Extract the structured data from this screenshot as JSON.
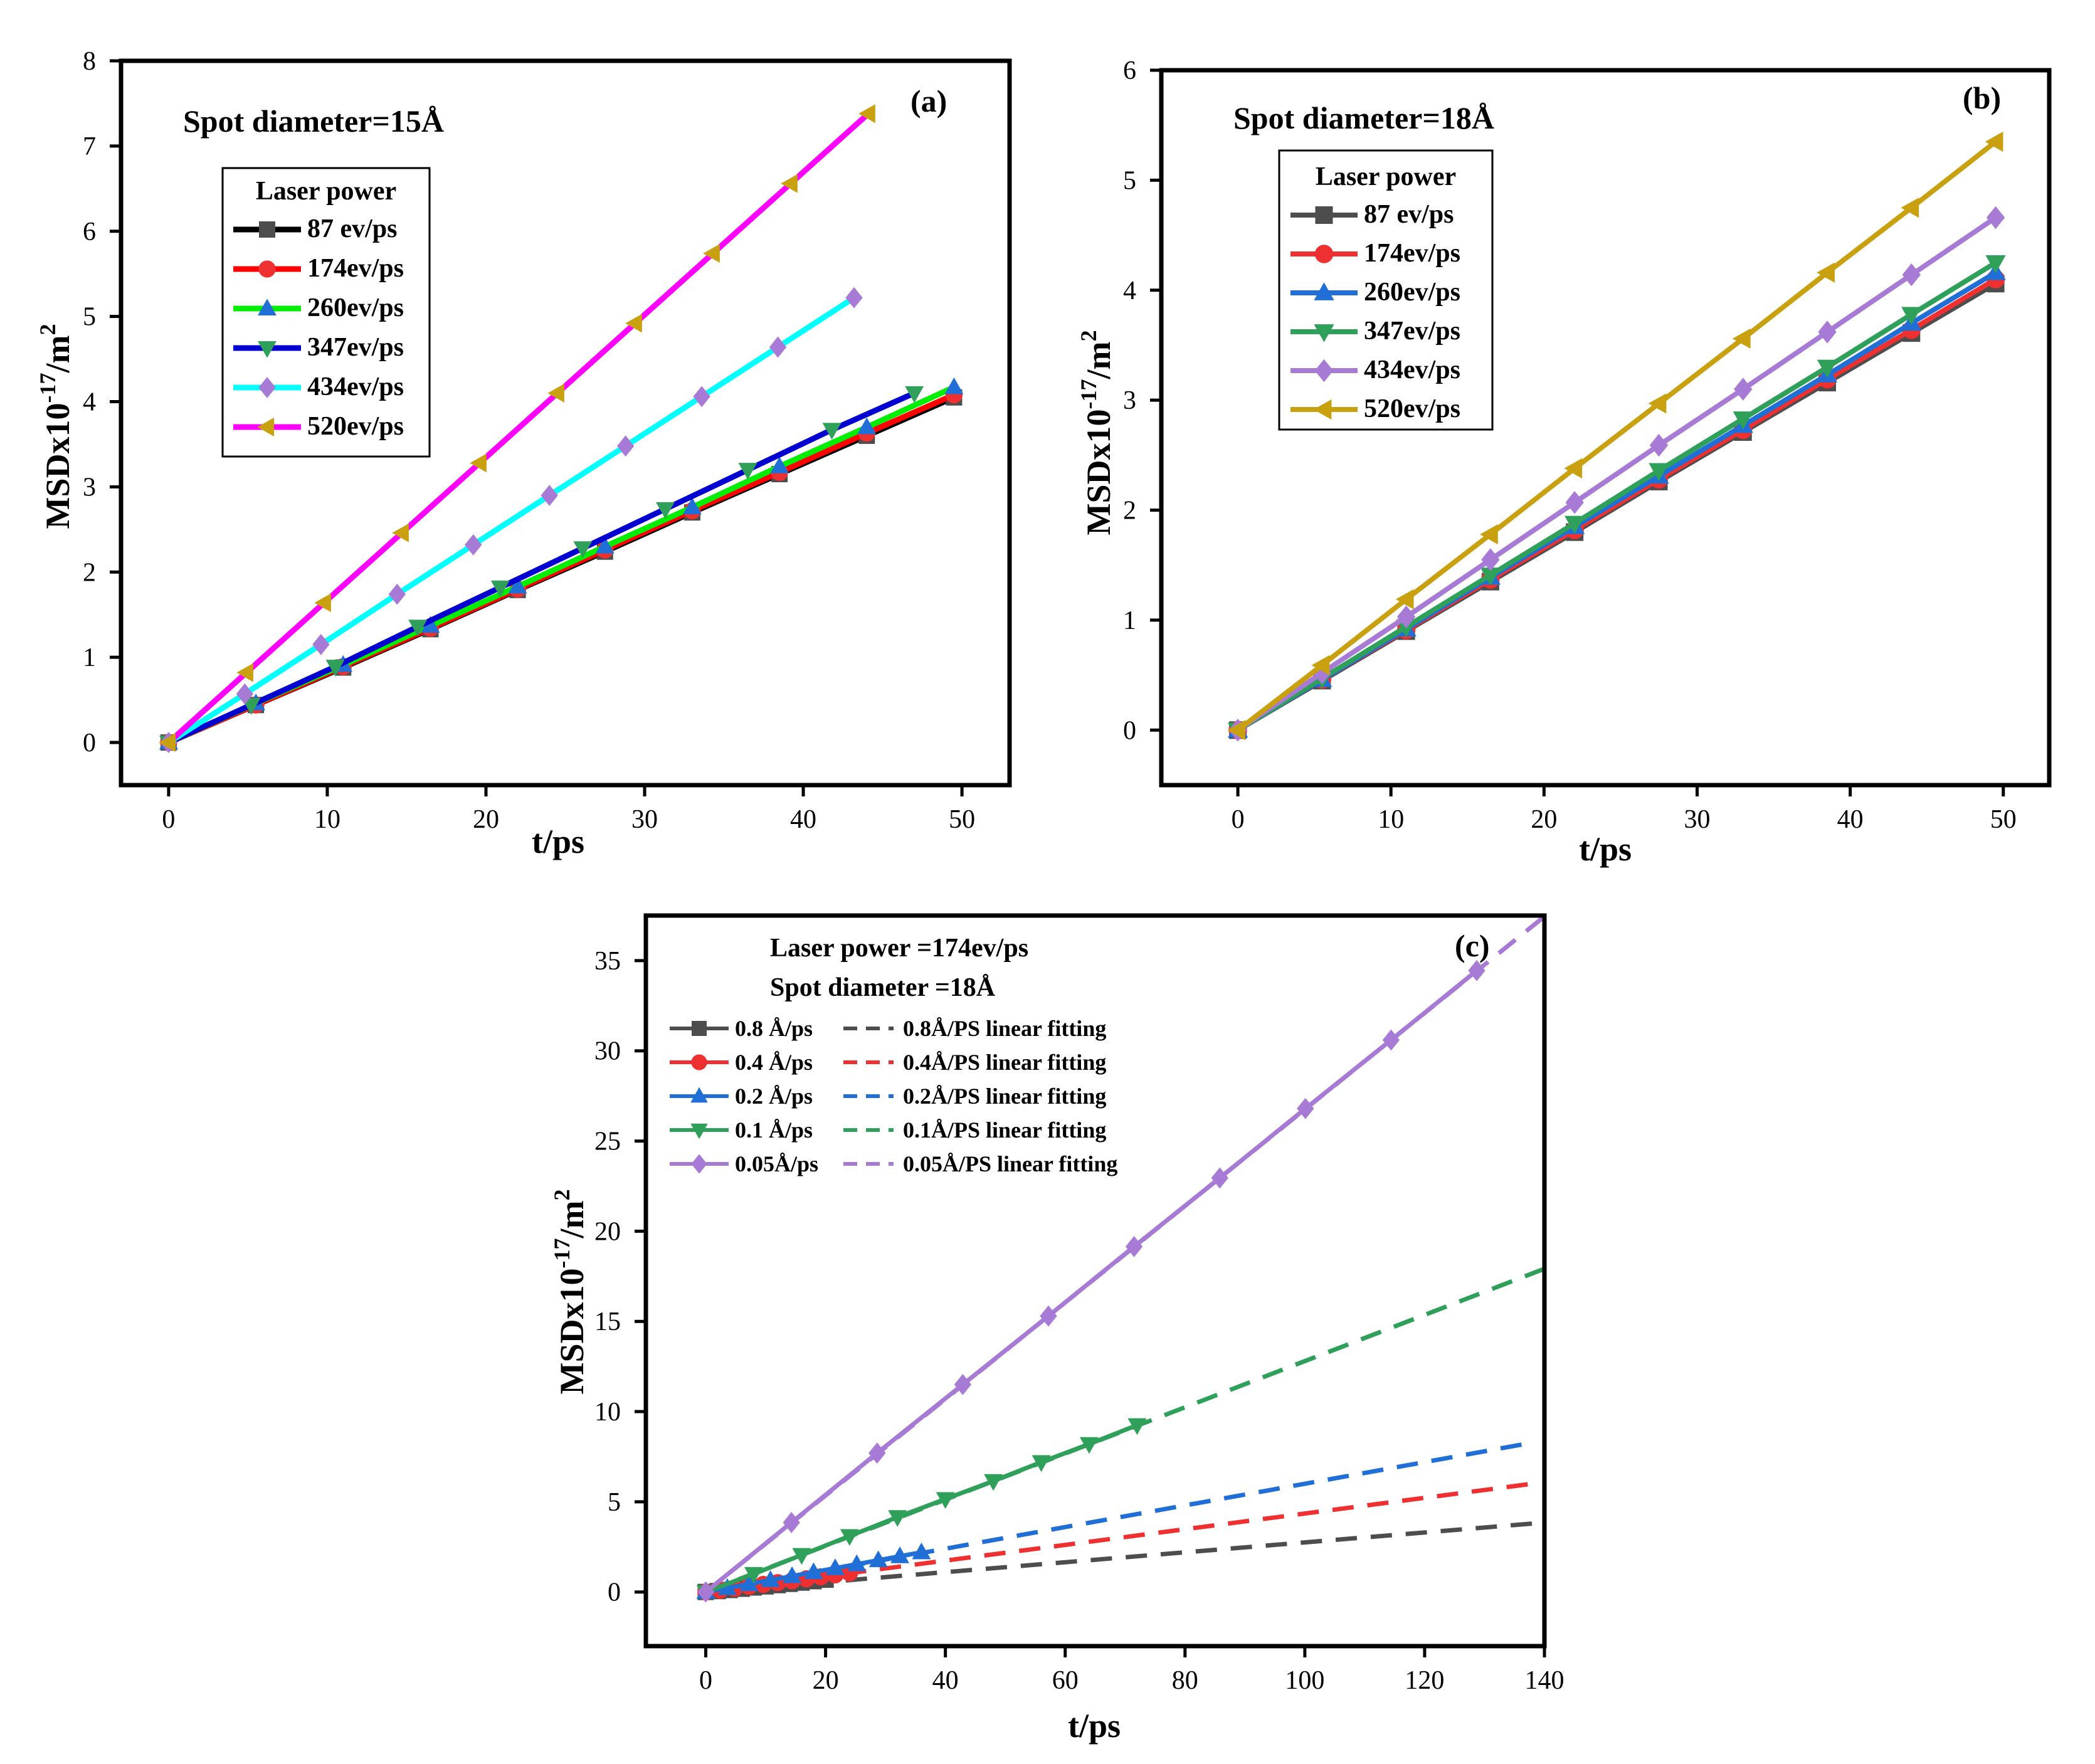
{
  "chart_data": [
    {
      "id": "a",
      "type": "line",
      "panel_label": "(a)",
      "annotation": "Spot diameter=15Å",
      "xlabel": "t/ps",
      "ylabel": "MSDx10-17/m2",
      "ylabel_parts": {
        "base": "MSDx10",
        "exp": "-17",
        "unit": "/m",
        "unit_exp": "2"
      },
      "xlim": [
        -3,
        53
      ],
      "ylim": [
        -0.5,
        8
      ],
      "xticks": [
        0,
        10,
        20,
        30,
        40,
        50
      ],
      "yticks": [
        0,
        1,
        2,
        3,
        4,
        5,
        6,
        7,
        8
      ],
      "legend_title": "Laser power",
      "legend_position": "upper-left",
      "series": [
        {
          "name": "87 ev/ps",
          "color": "#000000",
          "marker_color": "#4d4d4d",
          "marker": "square",
          "x": [
            0,
            5.5,
            11,
            16.5,
            22,
            27.5,
            33,
            38.5,
            44,
            49.5
          ],
          "y": [
            0,
            0.44,
            0.88,
            1.33,
            1.79,
            2.24,
            2.7,
            3.15,
            3.6,
            4.05
          ]
        },
        {
          "name": "174ev/ps",
          "color": "#ff0000",
          "marker_color": "#ee3030",
          "marker": "circle",
          "x": [
            0,
            5.5,
            11,
            16.5,
            22,
            27.5,
            33,
            38.5,
            44,
            49.5
          ],
          "y": [
            0,
            0.44,
            0.89,
            1.34,
            1.8,
            2.26,
            2.72,
            3.17,
            3.63,
            4.08
          ]
        },
        {
          "name": "260ev/ps",
          "color": "#00ee00",
          "marker_color": "#1f6fd6",
          "marker": "triangle-up",
          "x": [
            0,
            5.5,
            11,
            16.5,
            22,
            27.5,
            33,
            38.5,
            44,
            49.5
          ],
          "y": [
            0,
            0.46,
            0.91,
            1.37,
            1.83,
            2.3,
            2.76,
            3.24,
            3.7,
            4.17
          ]
        },
        {
          "name": "347ev/ps",
          "color": "#0000d0",
          "marker_color": "#2fa05a",
          "marker": "triangle-down",
          "x": [
            0,
            5.2,
            10.5,
            15.7,
            20.9,
            26.1,
            31.3,
            36.5,
            41.8,
            47
          ],
          "y": [
            0,
            0.44,
            0.89,
            1.36,
            1.82,
            2.28,
            2.74,
            3.2,
            3.67,
            4.1
          ]
        },
        {
          "name": "434ev/ps",
          "color": "#00ffff",
          "marker_color": "#a77ad6",
          "marker": "diamond",
          "x": [
            0,
            4.8,
            9.6,
            14.4,
            19.2,
            24,
            28.8,
            33.6,
            38.4,
            43.2
          ],
          "y": [
            0,
            0.57,
            1.15,
            1.74,
            2.32,
            2.9,
            3.48,
            4.06,
            4.64,
            5.22
          ]
        },
        {
          "name": "520ev/ps",
          "color": "#ff00ff",
          "marker_color": "#c9a010",
          "marker": "triangle-left",
          "x": [
            0,
            4.9,
            9.8,
            14.7,
            19.6,
            24.5,
            29.4,
            34.3,
            39.2,
            44.1
          ],
          "y": [
            0,
            0.82,
            1.64,
            2.46,
            3.28,
            4.1,
            4.92,
            5.74,
            6.56,
            7.38
          ]
        }
      ]
    },
    {
      "id": "b",
      "type": "line",
      "panel_label": "(b)",
      "annotation": "Spot diameter=18Å",
      "xlabel": "t/ps",
      "ylabel": "MSDx10-17/m2",
      "ylabel_parts": {
        "base": "MSDx10",
        "exp": "-17",
        "unit": "/m",
        "unit_exp": "2"
      },
      "xlim": [
        -5,
        53
      ],
      "ylim": [
        -0.5,
        6
      ],
      "xticks": [
        0,
        10,
        20,
        30,
        40,
        50
      ],
      "yticks": [
        0,
        1,
        2,
        3,
        4,
        5,
        6
      ],
      "legend_title": "Laser power",
      "legend_position": "upper-left",
      "series": [
        {
          "name": "87 ev/ps",
          "color": "#4d4d4d",
          "marker_color": "#4d4d4d",
          "marker": "square",
          "x": [
            0,
            5.5,
            11,
            16.5,
            22,
            27.5,
            33,
            38.5,
            44,
            49.5
          ],
          "y": [
            0,
            0.45,
            0.9,
            1.35,
            1.8,
            2.26,
            2.71,
            3.16,
            3.61,
            4.06
          ]
        },
        {
          "name": "174ev/ps",
          "color": "#ee3030",
          "marker_color": "#ee3030",
          "marker": "circle",
          "x": [
            0,
            5.5,
            11,
            16.5,
            22,
            27.5,
            33,
            38.5,
            44,
            49.5
          ],
          "y": [
            0,
            0.46,
            0.91,
            1.37,
            1.82,
            2.28,
            2.73,
            3.19,
            3.64,
            4.1
          ]
        },
        {
          "name": "260ev/ps",
          "color": "#1f6fd6",
          "marker_color": "#1f6fd6",
          "marker": "triangle-up",
          "x": [
            0,
            5.5,
            11,
            16.5,
            22,
            27.5,
            33,
            38.5,
            44,
            49.5
          ],
          "y": [
            0,
            0.46,
            0.92,
            1.39,
            1.85,
            2.31,
            2.77,
            3.23,
            3.7,
            4.16
          ]
        },
        {
          "name": "347ev/ps",
          "color": "#2fa05a",
          "marker_color": "#2fa05a",
          "marker": "triangle-down",
          "x": [
            0,
            5.5,
            11,
            16.5,
            22,
            27.5,
            33,
            38.5,
            44,
            49.5
          ],
          "y": [
            0,
            0.47,
            0.94,
            1.41,
            1.88,
            2.36,
            2.83,
            3.3,
            3.78,
            4.25
          ]
        },
        {
          "name": "434ev/ps",
          "color": "#a77ad6",
          "marker_color": "#a77ad6",
          "marker": "diamond",
          "x": [
            0,
            5.5,
            11,
            16.5,
            22,
            27.5,
            33,
            38.5,
            44,
            49.5
          ],
          "y": [
            0,
            0.52,
            1.03,
            1.55,
            2.07,
            2.59,
            3.1,
            3.62,
            4.14,
            4.66
          ]
        },
        {
          "name": "520ev/ps",
          "color": "#c9a010",
          "marker_color": "#c9a010",
          "marker": "triangle-left",
          "x": [
            0,
            5.5,
            11,
            16.5,
            22,
            27.5,
            33,
            38.5,
            44,
            49.5
          ],
          "y": [
            0,
            0.59,
            1.19,
            1.78,
            2.38,
            2.97,
            3.56,
            4.16,
            4.75,
            5.35
          ]
        }
      ]
    },
    {
      "id": "c",
      "type": "line",
      "panel_label": "(c)",
      "annotation_lines": [
        "Laser power =174ev/ps",
        "Spot diameter =18Å"
      ],
      "xlabel": "t/ps",
      "ylabel": "MSDx10-17/m2",
      "ylabel_parts": {
        "base": "MSDx10",
        "exp": "-17",
        "unit": "/m",
        "unit_exp": "2"
      },
      "xlim": [
        -10,
        140
      ],
      "ylim": [
        -3,
        37.5
      ],
      "xticks": [
        0,
        20,
        40,
        60,
        80,
        100,
        120,
        140
      ],
      "yticks": [
        0,
        5,
        10,
        15,
        20,
        25,
        30,
        35
      ],
      "legend_position": "upper-left",
      "series": [
        {
          "name": "0.8 Å/ps",
          "fit_name": "0.8Å/PS linear fitting",
          "color": "#4d4d4d",
          "marker": "square",
          "x": [
            0,
            2,
            4,
            6,
            8,
            10,
            12,
            14,
            16,
            18,
            20
          ],
          "y": [
            0,
            0.05,
            0.11,
            0.18,
            0.25,
            0.31,
            0.38,
            0.45,
            0.52,
            0.6,
            0.68
          ],
          "fit": {
            "slope": 0.0275,
            "intercept": 0,
            "x_end": 138
          }
        },
        {
          "name": "0.4 Å/ps",
          "fit_name": "0.4Å/PS linear fitting",
          "color": "#ee3030",
          "marker": "circle",
          "x": [
            0,
            2.4,
            4.8,
            7.2,
            9.6,
            12,
            14.4,
            16.8,
            19.2,
            21.6,
            24
          ],
          "y": [
            0,
            0.1,
            0.2,
            0.31,
            0.42,
            0.52,
            0.62,
            0.73,
            0.84,
            0.95,
            1.06
          ],
          "fit": {
            "slope": 0.0435,
            "intercept": 0,
            "x_end": 138
          }
        },
        {
          "name": "0.2 Å/ps",
          "fit_name": "0.2Å/PS linear fitting",
          "color": "#1f6fd6",
          "marker": "triangle-up",
          "x": [
            0,
            3.6,
            7.2,
            10.8,
            14.4,
            18,
            21.6,
            25.2,
            28.8,
            32.4,
            36
          ],
          "y": [
            0,
            0.22,
            0.44,
            0.66,
            0.88,
            1.1,
            1.32,
            1.54,
            1.76,
            1.98,
            2.2
          ],
          "fit": {
            "slope": 0.06,
            "intercept": 0,
            "x_end": 138
          }
        },
        {
          "name": "0.1 Å/ps",
          "fit_name": "0.1Å/PS linear fitting",
          "color": "#2fa05a",
          "marker": "triangle-down",
          "x": [
            0,
            8,
            16,
            24,
            32,
            40,
            48,
            56,
            64,
            72
          ],
          "y": [
            0,
            1.0,
            2.05,
            3.1,
            4.15,
            5.15,
            6.15,
            7.2,
            8.2,
            9.25
          ],
          "fit": {
            "slope": 0.128,
            "intercept": 0,
            "x_end": 140
          }
        },
        {
          "name": "0.05Å/ps",
          "fit_name": "0.05Å/PS linear fitting",
          "color": "#a77ad6",
          "marker": "diamond",
          "x": [
            0,
            14.3,
            28.6,
            42.9,
            57.2,
            71.5,
            85.8,
            100.1,
            114.4,
            128.7
          ],
          "y": [
            0,
            3.85,
            7.7,
            11.5,
            15.3,
            19.15,
            22.95,
            26.8,
            30.6,
            34.45
          ],
          "fit": {
            "slope": 0.2675,
            "intercept": 0,
            "x_end": 140
          }
        }
      ]
    }
  ]
}
